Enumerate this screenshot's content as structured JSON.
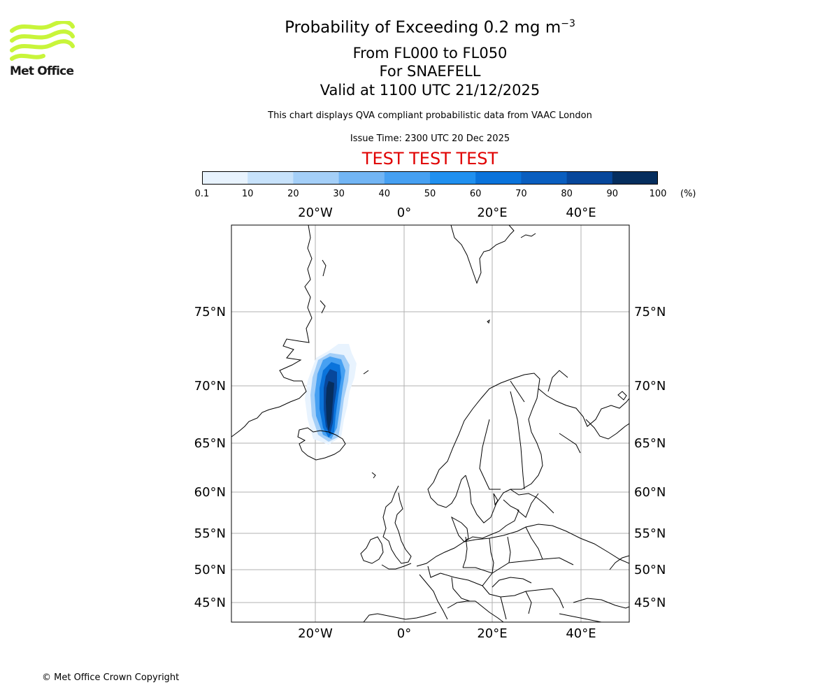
{
  "header": {
    "logo_text": "Met Office",
    "title_prefix": "Probability of Exceeding 0.2 mg m",
    "title_exponent": "−3",
    "flight_levels": "From FL000 to FL050",
    "volcano": "For SNAEFELL",
    "valid_time": "Valid at 1100 UTC 21/12/2025",
    "disclaimer": "This chart displays QVA compliant probabilistic data from VAAC London",
    "issue_time": "Issue Time: 2300 UTC 20 Dec 2025",
    "test_banner": "TEST TEST TEST"
  },
  "colors": {
    "logo_green": "#c8f53a",
    "test_red": "#e00000",
    "gridline": "#b0b0b0",
    "coastline": "#000000"
  },
  "legend": {
    "unit": "(%)",
    "ticks": [
      "0.1",
      "10",
      "20",
      "30",
      "40",
      "50",
      "60",
      "70",
      "80",
      "90",
      "100"
    ],
    "bin_colors": [
      "#e8f3fe",
      "#c7e2fb",
      "#a4cff8",
      "#72b5f4",
      "#46a0f2",
      "#2090ef",
      "#0a73db",
      "#0a5ebf",
      "#07479b",
      "#062e5e"
    ]
  },
  "map": {
    "top_lon_labels": [
      "20°W",
      "0°",
      "20°E",
      "40°E"
    ],
    "bottom_lon_labels": [
      "20°W",
      "0°",
      "20°E",
      "40°E"
    ],
    "left_lat_labels": [
      "75°N",
      "70°N",
      "65°N",
      "60°N",
      "55°N",
      "50°N",
      "45°N"
    ],
    "right_lat_labels": [
      "75°N",
      "70°N",
      "65°N",
      "60°N",
      "55°N",
      "50°N",
      "45°N"
    ]
  },
  "footer": {
    "copyright": "© Met Office Crown Copyright"
  }
}
